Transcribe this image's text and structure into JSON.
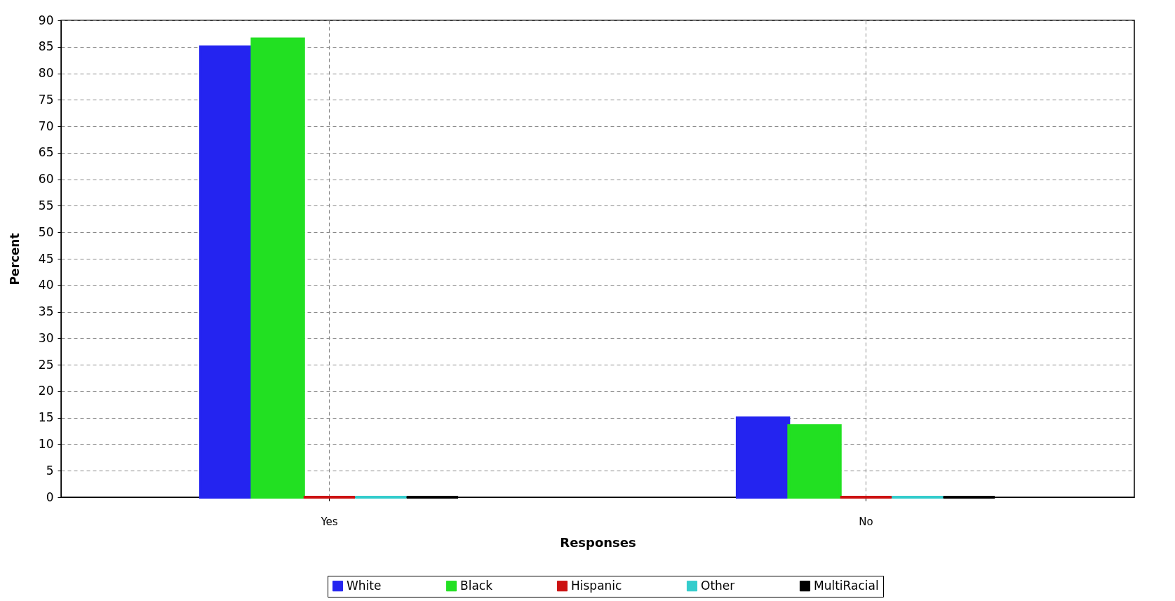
{
  "chart_data": {
    "type": "bar",
    "xlabel": "Responses",
    "ylabel": "Percent",
    "categories": [
      "Yes",
      "No"
    ],
    "series": [
      {
        "name": "White",
        "color": "#2424f0",
        "values": [
          85,
          15
        ]
      },
      {
        "name": "Black",
        "color": "#22e022",
        "values": [
          86.5,
          13.5
        ]
      },
      {
        "name": "Hispanic",
        "color": "#cc1111",
        "values": [
          0,
          0
        ]
      },
      {
        "name": "Other",
        "color": "#33cccc",
        "values": [
          0,
          0
        ]
      },
      {
        "name": "MultiRacial",
        "color": "#000000",
        "values": [
          0,
          0
        ]
      }
    ],
    "ylim": [
      0,
      90
    ],
    "yticks": [
      0,
      5,
      10,
      15,
      20,
      25,
      30,
      35,
      40,
      45,
      50,
      55,
      60,
      65,
      70,
      75,
      80,
      85,
      90
    ],
    "grid": true,
    "legend": "bottom"
  }
}
